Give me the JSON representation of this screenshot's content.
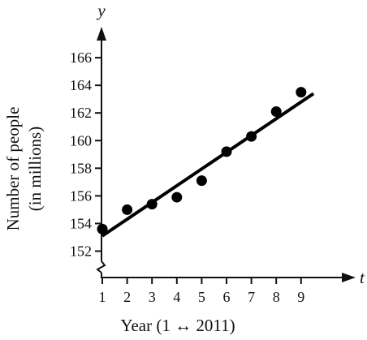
{
  "chart_data": {
    "type": "scatter",
    "x": [
      1,
      2,
      3,
      4,
      5,
      6,
      7,
      8,
      9
    ],
    "y": [
      153.6,
      155.0,
      155.4,
      155.9,
      157.1,
      159.2,
      160.3,
      162.1,
      163.5
    ],
    "trendline": {
      "x": [
        1,
        9.5
      ],
      "y": [
        153.1,
        163.4
      ]
    },
    "xlabel": "Year (1 ↔ 2011)",
    "ylabel_line1": "Number of people",
    "ylabel_line2": "(in millions)",
    "x_var": "t",
    "y_var": "y",
    "x_ticks": [
      1,
      2,
      3,
      4,
      5,
      6,
      7,
      8,
      9
    ],
    "y_ticks": [
      152,
      154,
      156,
      158,
      160,
      162,
      164,
      166
    ],
    "xlim": [
      0,
      10
    ],
    "ylim": [
      152,
      166
    ],
    "y_axis_break": true,
    "grid": false,
    "colors": {
      "ink": "#111111",
      "points": "#000000"
    }
  }
}
